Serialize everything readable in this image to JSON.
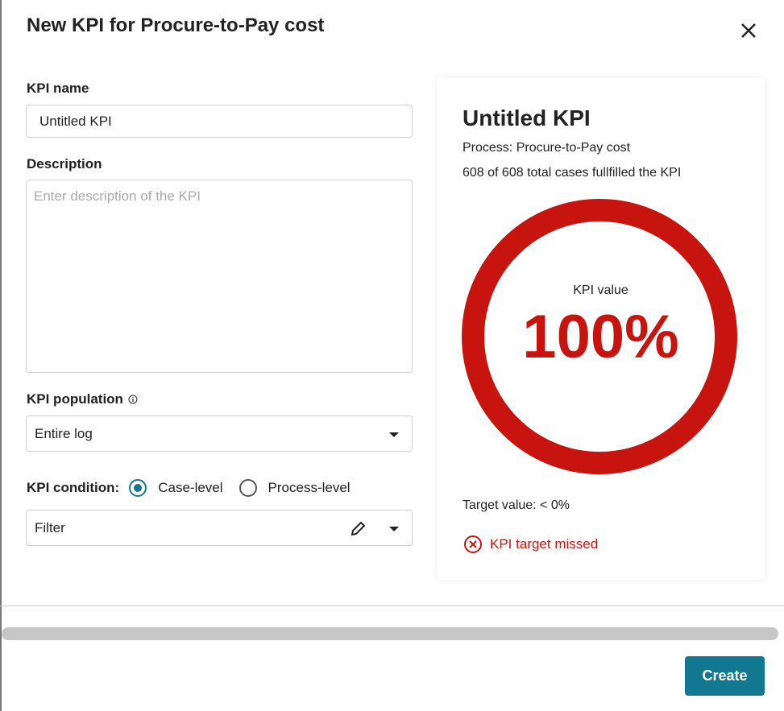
{
  "dialog": {
    "title": "New KPI for Procure-to-Pay cost",
    "close_icon": "close-icon"
  },
  "form": {
    "name_label": "KPI name",
    "name_value": "Untitled KPI",
    "description_label": "Description",
    "description_placeholder": "Enter description of the KPI",
    "population_label": "KPI population",
    "population_value": "Entire log",
    "condition_label": "KPI condition:",
    "condition_options": [
      "Case-level",
      "Process-level"
    ],
    "condition_selected": "Case-level",
    "filter_value": "Filter"
  },
  "preview": {
    "title": "Untitled KPI",
    "process": "Process: Procure-to-Pay cost",
    "cases": "608 of 608 total cases fullfilled the KPI",
    "kpi_value_label": "KPI value",
    "kpi_value": "100%",
    "kpi_fraction": 1.0,
    "target": "Target value: < 0%",
    "status": "KPI target missed",
    "status_color": "#c8140f"
  },
  "footer": {
    "create_label": "Create"
  },
  "colors": {
    "accent": "#127790",
    "danger": "#c8140f"
  }
}
